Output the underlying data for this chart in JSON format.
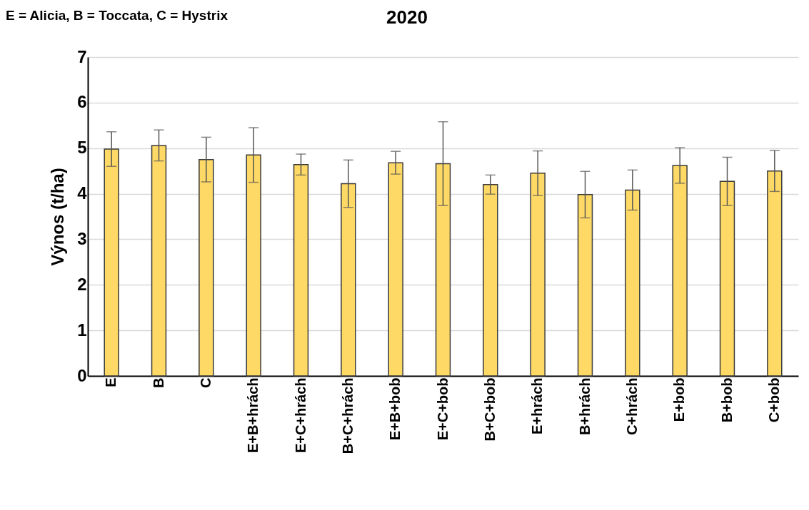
{
  "chart_data": {
    "type": "bar",
    "title": "2020",
    "ylabel": "Výnos (t/ha)",
    "annotations": [
      "E = Alicia, B = Toccata, C = Hystrix"
    ],
    "categories": [
      "E",
      "B",
      "C",
      "E+B+hrách",
      "E+C+hrách",
      "B+C+hrách",
      "E+B+bob",
      "E+C+bob",
      "B+C+bob",
      "E+hrách",
      "B+hrách",
      "C+hrách",
      "E+bob",
      "B+bob",
      "C+bob"
    ],
    "values": [
      4.98,
      5.06,
      4.75,
      4.85,
      4.64,
      4.22,
      4.68,
      4.66,
      4.2,
      4.45,
      3.98,
      4.08,
      4.62,
      4.27,
      4.5
    ],
    "errors": [
      0.38,
      0.34,
      0.49,
      0.6,
      0.23,
      0.52,
      0.25,
      0.92,
      0.21,
      0.49,
      0.51,
      0.44,
      0.39,
      0.53,
      0.45
    ],
    "color": "#fed966",
    "ylim": [
      0,
      7
    ],
    "yticks": [
      0,
      1,
      2,
      3,
      4,
      5,
      6,
      7
    ],
    "grid": "y"
  }
}
